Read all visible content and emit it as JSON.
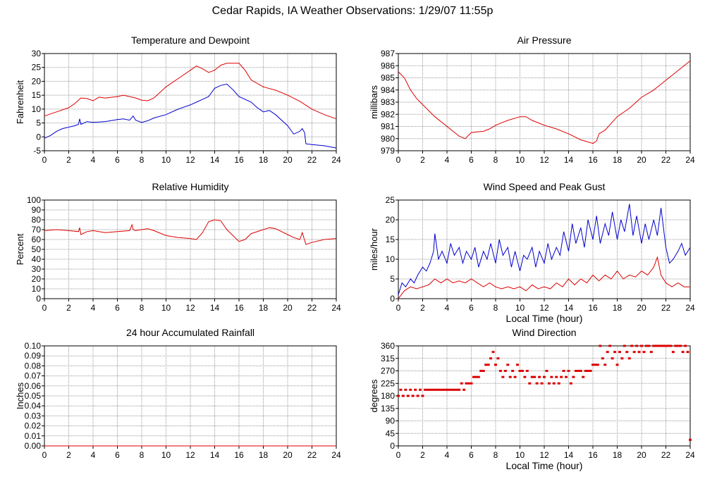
{
  "page": {
    "title": "Cedar Rapids, IA Weather Observations: 1/29/07 11:55p"
  },
  "colors": {
    "red_series": "#dd0000",
    "blue_series": "#0000cc",
    "grid": "#999999",
    "frame": "#000000"
  },
  "chart_data": [
    {
      "id": "temperature",
      "type": "line",
      "title": "Temperature and Dewpoint",
      "xlabel": "",
      "ylabel": "Fahrenheit",
      "xlim": [
        0,
        24
      ],
      "ylim": [
        -5,
        30
      ],
      "xticks": [
        0,
        2,
        4,
        6,
        8,
        10,
        12,
        14,
        16,
        18,
        20,
        22,
        24
      ],
      "yticks": [
        -5,
        0,
        5,
        10,
        15,
        20,
        25,
        30
      ],
      "grid": true,
      "series": [
        {
          "color": "#dd0000",
          "x": [
            0,
            1,
            2,
            2.5,
            3,
            3.5,
            4,
            4.5,
            5,
            6,
            6.5,
            7,
            7.5,
            8,
            8.5,
            9,
            10,
            11,
            12,
            12.5,
            13,
            13.5,
            14,
            14.5,
            15,
            16,
            16.5,
            17,
            18,
            19,
            20,
            21,
            22,
            23,
            24
          ],
          "y": [
            7.5,
            9,
            10.5,
            12,
            14,
            13.8,
            13,
            14.3,
            14,
            14.5,
            15,
            14.5,
            14,
            13.2,
            13,
            14,
            18,
            21,
            24,
            25.5,
            24.5,
            23.2,
            24,
            25.8,
            26.5,
            26.5,
            24,
            20.5,
            18,
            16.8,
            15,
            12.8,
            10,
            8,
            6.5
          ]
        },
        {
          "color": "#0000cc",
          "x": [
            0,
            0.5,
            1,
            1.5,
            2,
            2.5,
            2.8,
            2.9,
            3,
            3.5,
            4,
            5,
            6,
            6.5,
            7,
            7.2,
            7.3,
            7.5,
            8,
            8.5,
            9,
            10,
            11,
            12,
            12.5,
            13,
            13.5,
            14,
            14.5,
            15,
            15.5,
            16,
            17,
            17.5,
            18,
            18.5,
            19,
            20,
            20.5,
            21,
            21.2,
            21.4,
            21.5,
            22,
            23,
            24
          ],
          "y": [
            -0.5,
            0.5,
            2,
            3,
            3.5,
            4,
            4.5,
            6.5,
            4.5,
            5.5,
            5.2,
            5.5,
            6.2,
            6.5,
            6,
            7,
            7.5,
            6,
            5.2,
            5.8,
            6.8,
            8,
            10,
            11.5,
            12.5,
            13.5,
            14.5,
            17.5,
            18.5,
            19,
            17,
            14.5,
            12.5,
            10.5,
            9,
            9.5,
            8,
            4,
            1,
            2,
            3,
            1.5,
            -2.5,
            -2.8,
            -3.2,
            -4
          ]
        }
      ]
    },
    {
      "id": "pressure",
      "type": "line",
      "title": "Air Pressure",
      "xlabel": "",
      "ylabel": "millibars",
      "xlim": [
        0,
        24
      ],
      "ylim": [
        979,
        987
      ],
      "xticks": [
        0,
        2,
        4,
        6,
        8,
        10,
        12,
        14,
        16,
        18,
        20,
        22,
        24
      ],
      "yticks": [
        979,
        980,
        981,
        982,
        983,
        984,
        985,
        986,
        987
      ],
      "grid": true,
      "series": [
        {
          "color": "#dd0000",
          "x": [
            0,
            0.5,
            1,
            1.5,
            2,
            3,
            4,
            4.5,
            5,
            5.5,
            6,
            7,
            7.5,
            8,
            8.5,
            9,
            10,
            10.5,
            11,
            12,
            13,
            14,
            15,
            16,
            16.3,
            16.5,
            17,
            18,
            19,
            20,
            21,
            22,
            23,
            24
          ],
          "y": [
            985.5,
            985,
            984,
            983.3,
            982.8,
            981.8,
            981,
            980.6,
            980.2,
            980,
            980.5,
            980.6,
            980.8,
            981.1,
            981.3,
            981.5,
            981.8,
            981.8,
            981.5,
            981.1,
            980.8,
            980.4,
            979.9,
            979.6,
            979.8,
            980.4,
            980.7,
            981.8,
            982.5,
            983.4,
            984,
            984.8,
            985.6,
            986.4
          ]
        }
      ]
    },
    {
      "id": "humidity",
      "type": "line",
      "title": "Relative Humidity",
      "xlabel": "",
      "ylabel": "Percent",
      "xlim": [
        0,
        24
      ],
      "ylim": [
        0,
        100
      ],
      "xticks": [
        0,
        2,
        4,
        6,
        8,
        10,
        12,
        14,
        16,
        18,
        20,
        22,
        24
      ],
      "yticks": [
        0,
        10,
        20,
        30,
        40,
        50,
        60,
        70,
        80,
        90,
        100
      ],
      "grid": true,
      "series": [
        {
          "color": "#dd0000",
          "x": [
            0,
            1,
            2,
            2.8,
            2.9,
            3,
            3.5,
            4,
            5,
            6,
            7,
            7.2,
            7.3,
            7.5,
            8,
            8.5,
            9,
            10,
            11,
            12,
            12.5,
            13,
            13.5,
            14,
            14.5,
            15,
            16,
            16.5,
            17,
            18,
            18.5,
            19,
            20,
            20.5,
            21,
            21.2,
            21.5,
            22,
            23,
            24
          ],
          "y": [
            69,
            70,
            69,
            68,
            72,
            65,
            68,
            69,
            67,
            68,
            69,
            75,
            70,
            69,
            70,
            71,
            69,
            64,
            62,
            61,
            60,
            67,
            78,
            80,
            79,
            70,
            58,
            60,
            66,
            70,
            72,
            71,
            65,
            62,
            60,
            67,
            55,
            57,
            60,
            61
          ]
        }
      ]
    },
    {
      "id": "wind_speed",
      "type": "line",
      "title": "Wind Speed and Peak Gust",
      "xlabel": "Local Time (hour)",
      "ylabel": "miles/hour",
      "xlim": [
        0,
        24
      ],
      "ylim": [
        0,
        25
      ],
      "xticks": [
        0,
        2,
        4,
        6,
        8,
        10,
        12,
        14,
        16,
        18,
        20,
        22,
        24
      ],
      "yticks": [
        0,
        5,
        10,
        15,
        20,
        25
      ],
      "grid": true,
      "series": [
        {
          "color": "#0000cc",
          "x": [
            0,
            0.3,
            0.6,
            1,
            1.3,
            1.6,
            2,
            2.3,
            2.6,
            2.9,
            3,
            3.3,
            3.6,
            4,
            4.3,
            4.6,
            5,
            5.3,
            5.6,
            6,
            6.3,
            6.6,
            7,
            7.3,
            7.6,
            8,
            8.3,
            8.6,
            9,
            9.3,
            9.6,
            10,
            10.3,
            10.6,
            11,
            11.3,
            11.6,
            12,
            12.3,
            12.6,
            13,
            13.3,
            13.6,
            14,
            14.3,
            14.6,
            15,
            15.3,
            15.6,
            16,
            16.3,
            16.6,
            17,
            17.3,
            17.6,
            18,
            18.3,
            18.6,
            19,
            19.3,
            19.6,
            20,
            20.3,
            20.6,
            21,
            21.3,
            21.6,
            22,
            22.3,
            22.6,
            23,
            23.3,
            23.6,
            24
          ],
          "y": [
            1,
            4,
            3,
            5,
            4,
            6,
            8,
            7,
            9,
            12,
            16.5,
            10,
            12,
            9,
            14,
            11,
            13,
            9,
            12,
            10,
            13,
            8,
            12,
            10,
            14,
            9,
            15,
            11,
            13,
            8,
            12,
            7,
            11,
            10,
            13,
            8,
            12,
            9,
            14,
            10,
            13,
            11,
            17,
            12,
            19,
            14,
            18,
            13,
            20,
            15,
            21,
            14,
            19,
            16,
            22,
            15,
            20,
            17,
            24,
            16,
            21,
            14,
            19,
            15,
            20,
            16,
            23,
            13,
            9,
            10,
            12,
            14,
            11,
            13
          ]
        },
        {
          "color": "#dd0000",
          "x": [
            0,
            0.5,
            1,
            1.5,
            2,
            2.5,
            3,
            3.5,
            4,
            4.5,
            5,
            5.5,
            6,
            6.5,
            7,
            7.5,
            8,
            8.5,
            9,
            9.5,
            10,
            10.5,
            11,
            11.5,
            12,
            12.5,
            13,
            13.5,
            14,
            14.5,
            15,
            15.5,
            16,
            16.5,
            17,
            17.5,
            18,
            18.5,
            19,
            19.5,
            20,
            20.5,
            21,
            21.3,
            21.6,
            22,
            22.5,
            23,
            23.5,
            24
          ],
          "y": [
            0,
            2,
            3,
            2.5,
            3,
            3.5,
            5,
            4,
            5,
            4,
            4.5,
            4,
            5,
            4,
            3,
            4,
            3,
            2.5,
            3,
            2.5,
            3,
            2,
            3.5,
            2.5,
            3,
            2.5,
            4,
            3,
            5,
            3.5,
            5,
            4,
            6,
            4.5,
            6,
            5,
            7,
            5,
            6,
            5.5,
            7,
            6,
            8,
            10.5,
            6,
            4,
            3,
            4,
            3,
            3
          ]
        }
      ]
    },
    {
      "id": "rainfall",
      "type": "line",
      "title": "24 hour Accumulated Rainfall",
      "xlabel": "",
      "ylabel": "Inches",
      "xlim": [
        0,
        24
      ],
      "ylim": [
        0,
        0.1
      ],
      "xticks": [
        0,
        2,
        4,
        6,
        8,
        10,
        12,
        14,
        16,
        18,
        20,
        22,
        24
      ],
      "yticks": [
        0,
        0.01,
        0.02,
        0.03,
        0.04,
        0.05,
        0.06,
        0.07,
        0.08,
        0.09,
        0.1
      ],
      "ytick_labels": [
        "0.00",
        "0.01",
        "0.02",
        "0.03",
        "0.04",
        "0.05",
        "0.06",
        "0.07",
        "0.08",
        "0.09",
        "0.10"
      ],
      "grid": true,
      "series": [
        {
          "color": "#dd0000",
          "x": [
            0,
            24
          ],
          "y": [
            0,
            0
          ]
        }
      ]
    },
    {
      "id": "wind_direction",
      "type": "scatter",
      "title": "Wind Direction",
      "xlabel": "Local Time (hour)",
      "ylabel": "degrees",
      "xlim": [
        0,
        24
      ],
      "ylim": [
        0,
        360
      ],
      "xticks": [
        0,
        2,
        4,
        6,
        8,
        10,
        12,
        14,
        16,
        18,
        20,
        22,
        24
      ],
      "yticks": [
        0,
        45,
        90,
        135,
        180,
        225,
        270,
        315,
        360
      ],
      "grid": true,
      "series": [
        {
          "color": "#dd0000",
          "x": [
            0,
            0.2,
            0.4,
            0.6,
            0.8,
            1,
            1.2,
            1.4,
            1.6,
            1.8,
            2,
            2.2,
            2.4,
            2.6,
            2.8,
            3,
            3.2,
            3.4,
            3.6,
            3.8,
            4,
            4.2,
            4.4,
            4.6,
            4.8,
            5,
            5.2,
            5.4,
            5.6,
            5.8,
            6,
            6.2,
            6.4,
            6.6,
            6.8,
            7,
            7.2,
            7.4,
            7.6,
            7.8,
            8,
            8.2,
            8.4,
            8.6,
            8.8,
            9,
            9.2,
            9.4,
            9.6,
            9.8,
            10,
            10.2,
            10.4,
            10.6,
            10.8,
            11,
            11.2,
            11.4,
            11.6,
            11.8,
            12,
            12.2,
            12.4,
            12.6,
            12.8,
            13,
            13.2,
            13.4,
            13.6,
            13.8,
            14,
            14.2,
            14.4,
            14.6,
            14.8,
            15,
            15.2,
            15.4,
            15.6,
            15.8,
            16,
            16.2,
            16.4,
            16.6,
            16.8,
            17,
            17.2,
            17.4,
            17.6,
            17.8,
            18,
            18.2,
            18.4,
            18.6,
            18.8,
            19,
            19.2,
            19.4,
            19.6,
            19.8,
            20,
            20.2,
            20.4,
            20.6,
            20.8,
            21,
            21.2,
            21.4,
            21.6,
            21.8,
            22,
            22.2,
            22.4,
            22.6,
            22.8,
            23,
            23.2,
            23.4,
            23.6,
            23.8,
            24
          ],
          "y": [
            180,
            202,
            180,
            202,
            180,
            202,
            180,
            202,
            180,
            202,
            180,
            202,
            202,
            202,
            202,
            202,
            202,
            202,
            202,
            202,
            202,
            202,
            202,
            202,
            202,
            202,
            225,
            202,
            225,
            225,
            225,
            248,
            248,
            248,
            270,
            270,
            292,
            292,
            315,
            338,
            292,
            315,
            270,
            248,
            270,
            292,
            248,
            270,
            248,
            292,
            270,
            270,
            248,
            270,
            225,
            248,
            248,
            225,
            248,
            225,
            248,
            270,
            225,
            248,
            225,
            248,
            225,
            248,
            270,
            248,
            270,
            225,
            248,
            270,
            270,
            270,
            248,
            270,
            270,
            270,
            292,
            292,
            292,
            360,
            315,
            292,
            338,
            360,
            315,
            338,
            292,
            338,
            315,
            360,
            338,
            315,
            360,
            338,
            360,
            338,
            360,
            338,
            360,
            360,
            338,
            360,
            360,
            360,
            360,
            360,
            360,
            360,
            360,
            338,
            360,
            360,
            360,
            338,
            360,
            338,
            22
          ]
        }
      ]
    }
  ]
}
